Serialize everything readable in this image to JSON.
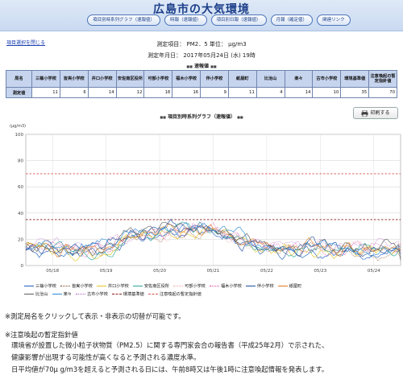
{
  "header": {
    "title": "広島市の大気環境",
    "nav": [
      "項目別時系列グラフ（速報値）",
      "時報（速報値）",
      "項目別日報（速報値）",
      "月報（確定値）",
      "関連リンク"
    ]
  },
  "close_link": "項目選択を閉じる",
  "measure": {
    "item_line": "測定項目： PM2．5 単位： μg/m3",
    "date_line": "測定年月日： 2017年05月24日 (水) 19時"
  },
  "section_prelim": "速報値",
  "section_graph": "項目別時系列グラフ（速報値）",
  "table": {
    "corner": "局名",
    "row_label": "測定値",
    "columns": [
      "三篠小学校",
      "皆実小学校",
      "井口小学校",
      "安佐南区役所",
      "可部小学校",
      "福木小学校",
      "伴小学校",
      "紙屋町",
      "比治山",
      "楽々",
      "古市小学校",
      "環境基準値",
      "注意喚起の暫定指針値"
    ],
    "values": [
      "11",
      "6",
      "14",
      "12",
      "18",
      "16",
      "9",
      "11",
      "4",
      "14",
      "10",
      "35",
      "70"
    ]
  },
  "print_label": "印刷する",
  "icons": {
    "print": "printer-icon"
  },
  "colors": {
    "accent": "#1d3f8a",
    "table_header": "#c6d4ee",
    "env_standard": "#8b1a1a",
    "alert_line": "#d9534f"
  },
  "legend_items": [
    {
      "name": "三篠小学校",
      "color": "#1f5fbf",
      "style": "solid"
    },
    {
      "name": "皆実小学校",
      "color": "#7a3b12",
      "style": "dot"
    },
    {
      "name": "井口小学校",
      "color": "#e8c521",
      "style": "solid"
    },
    {
      "name": "安佐南区役所",
      "color": "#26a69a",
      "style": "solid"
    },
    {
      "name": "可部小学校",
      "color": "#f2a0a0",
      "style": "dot"
    },
    {
      "name": "福木小学校",
      "color": "#d4409a",
      "style": "dot"
    },
    {
      "name": "伴小学校",
      "color": "#1a4fa0",
      "style": "solid"
    },
    {
      "name": "紙屋町",
      "color": "#e07a20",
      "style": "solid"
    },
    {
      "name": "比治山",
      "color": "#5a5a5a",
      "style": "solid"
    },
    {
      "name": "楽々",
      "color": "#2a8ad8",
      "style": "solid"
    },
    {
      "name": "古市小学校",
      "color": "#b060c8",
      "style": "dot"
    },
    {
      "name": "環境基準値",
      "color": "#8b1a1a",
      "style": "dash"
    },
    {
      "name": "注意喚起の暫定指針値",
      "color": "#d9534f",
      "style": "dash"
    }
  ],
  "chart_data": {
    "type": "line",
    "ylabel": "(μg/m3)",
    "ylim": [
      0,
      100
    ],
    "yticks": [
      0,
      20,
      40,
      60,
      80,
      100
    ],
    "x_tick_labels": [
      "05/18",
      "05/19",
      "05/20",
      "05/21",
      "05/22",
      "05/23",
      "05/24"
    ],
    "grid": true,
    "env_standard": 35,
    "alert_guideline": 70,
    "series_names": [
      "三篠小学校",
      "皆実小学校",
      "井口小学校",
      "安佐南区役所",
      "可部小学校",
      "福木小学校",
      "伴小学校",
      "紙屋町",
      "比治山",
      "楽々",
      "古市小学校"
    ],
    "approx_trend": {
      "time_days": [
        0,
        0.5,
        1,
        1.5,
        2,
        2.5,
        3,
        3.5,
        4,
        4.5,
        5,
        5.5,
        6,
        6.5,
        7
      ],
      "value": [
        14,
        13,
        12,
        14,
        24,
        26,
        28,
        27,
        20,
        14,
        14,
        15,
        13,
        12,
        13
      ]
    },
    "last_values": [
      11,
      6,
      14,
      12,
      18,
      16,
      9,
      11,
      4,
      14,
      10
    ]
  },
  "notes": {
    "toggle_hint": "※測定局名をクリックして表示・非表示の切替が可能です。",
    "alert_heading": "※注意喚起の暫定指針値",
    "alert_text1": "環境省が設置した微小粒子状物質（PM2.5）に関する専門家会合の報告書（平成25年2月）で示された、",
    "alert_text2": "健康影響が出現する可能性が高くなると予測される濃度水準。",
    "alert_text3": "日平均値が70μ g/m3を超えると予測される日には、午前8時又は午後1時に注意喚起情報を発表します。"
  }
}
